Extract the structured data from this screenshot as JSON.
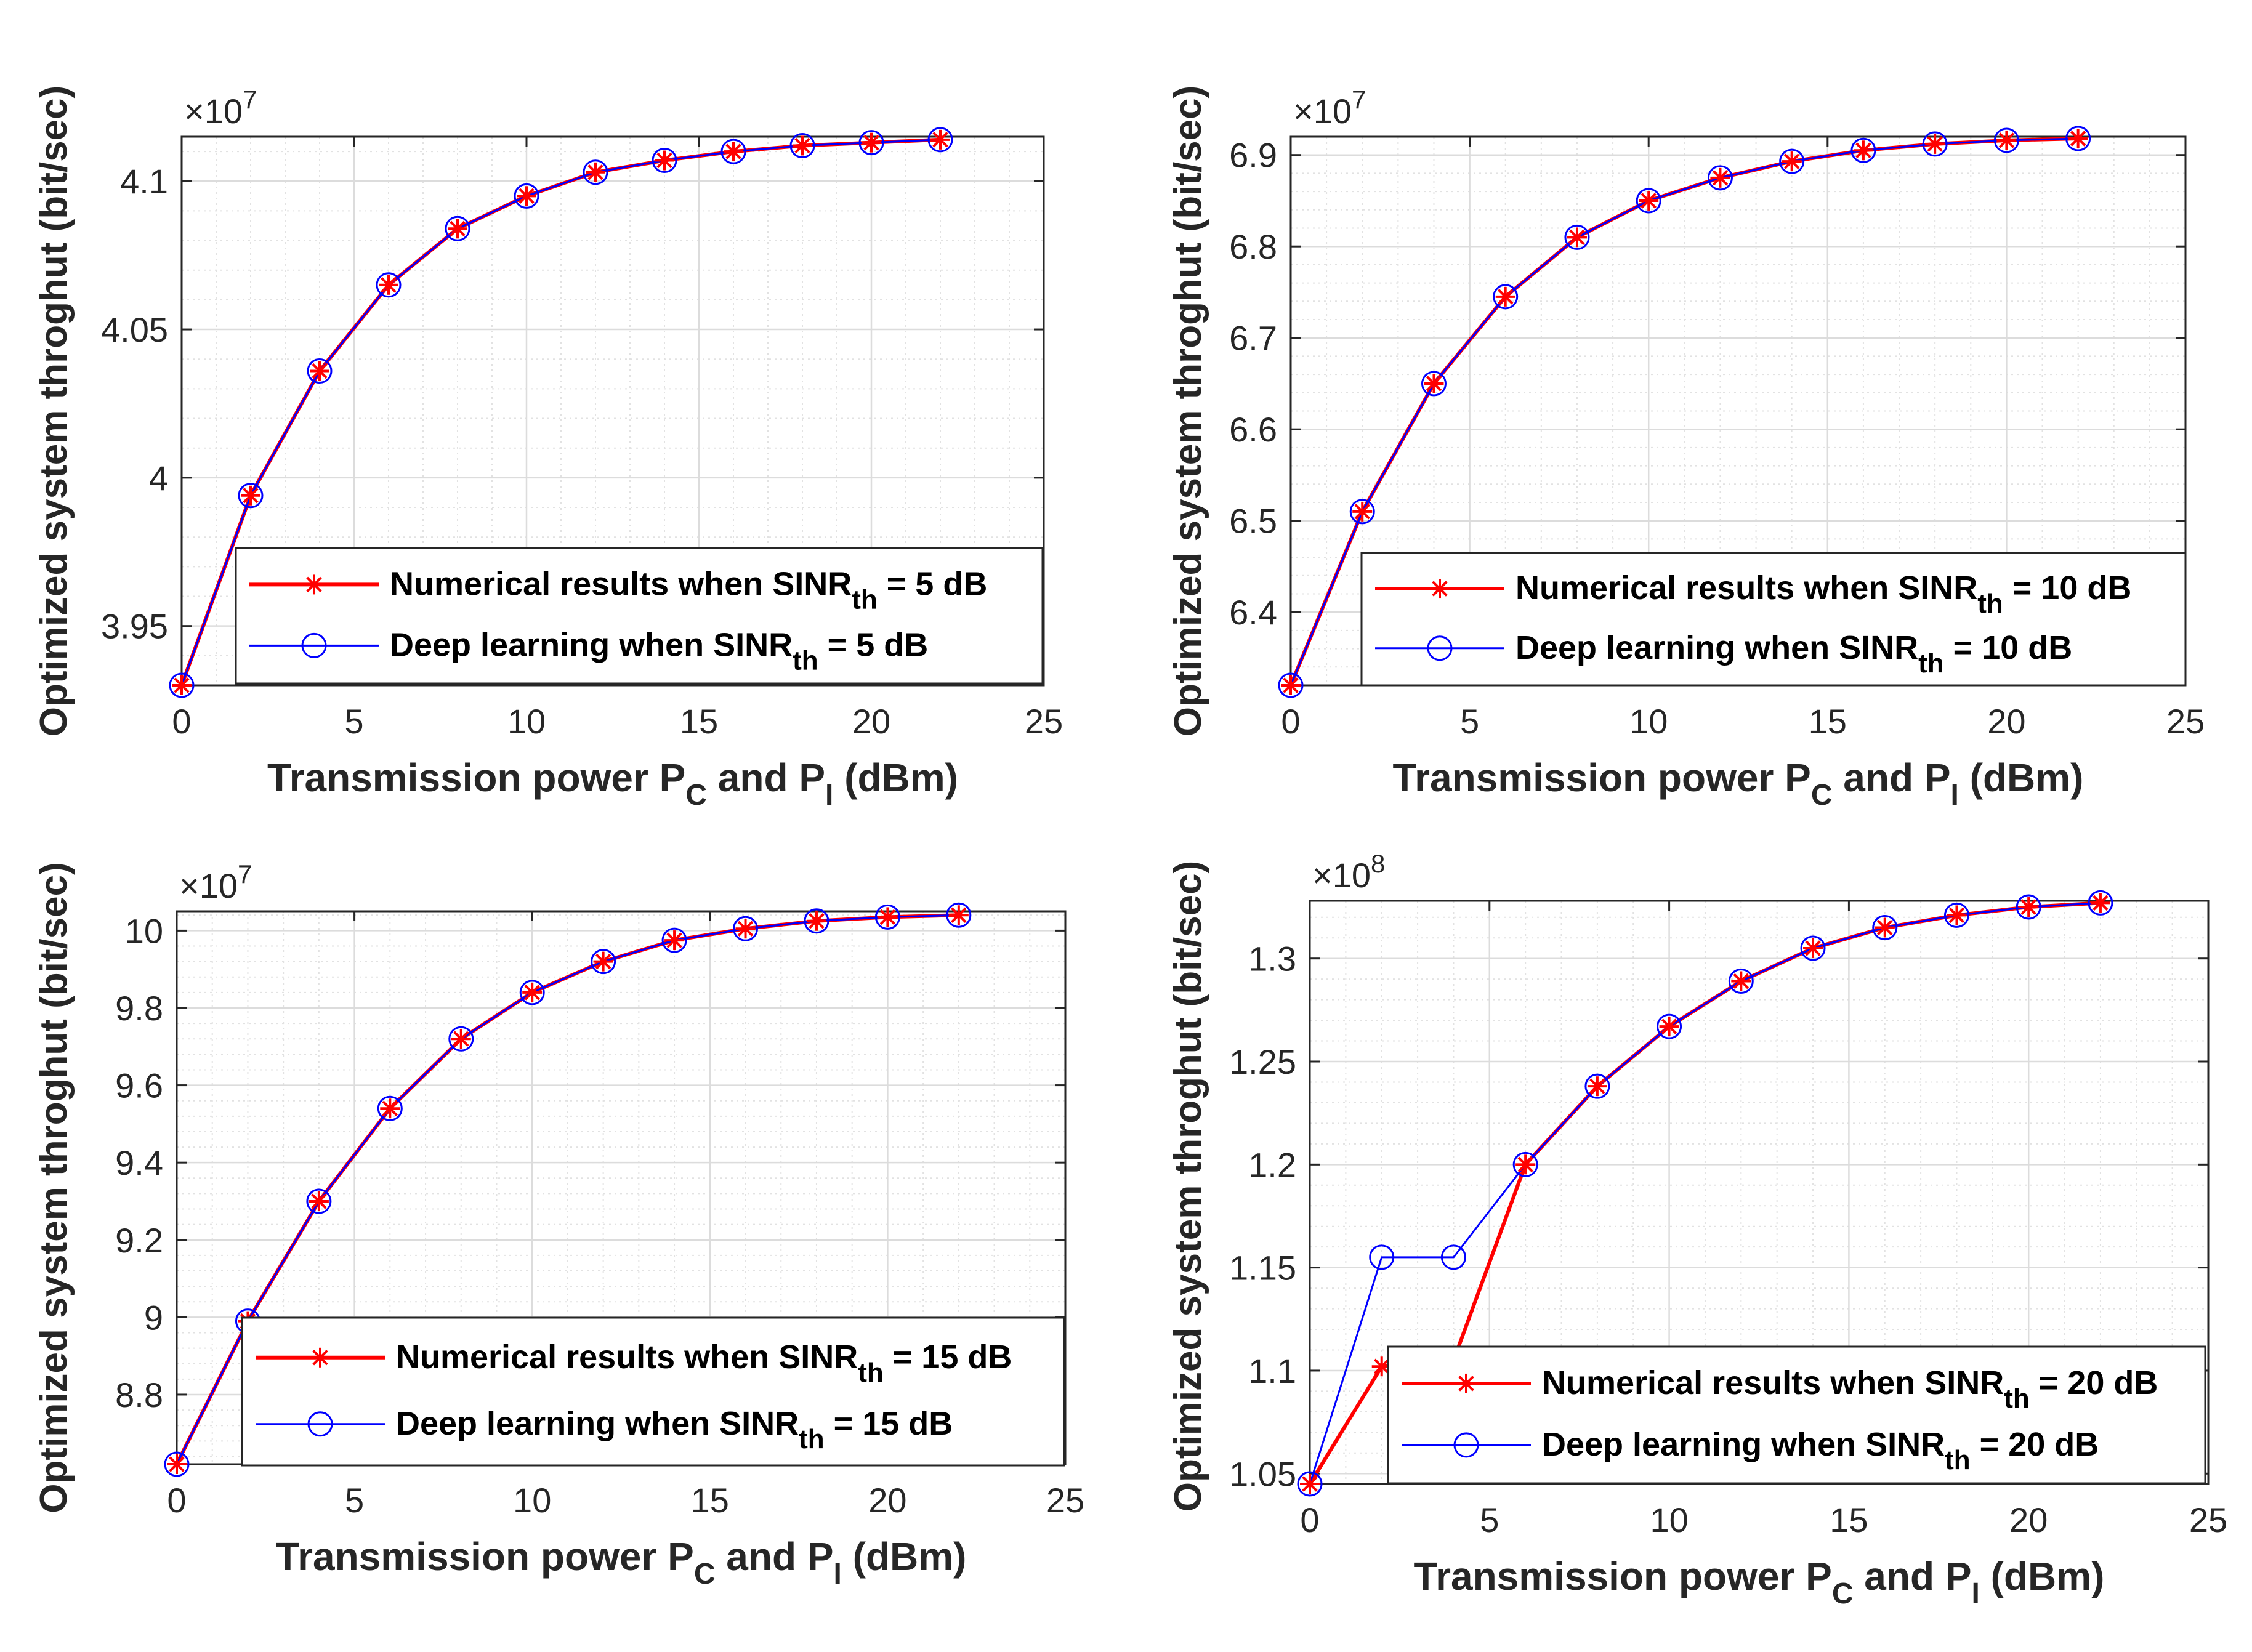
{
  "colors": {
    "numerical": "#ff0000",
    "deep": "#0000ff",
    "axis": "#262626",
    "grid": "#dcdcdc"
  },
  "chart_data": [
    {
      "type": "line",
      "xlabel_main": "Transmission power P",
      "xlabel_sub1": "C",
      "xlabel_mid": " and P",
      "xlabel_sub2": "I",
      "xlabel_end": " (dBm)",
      "ylabel": "Optimized system throghut (bit/sec)",
      "exponent_base": "×10",
      "exponent": "7",
      "xlim": [
        0,
        25
      ],
      "ylim": [
        3.93,
        4.115
      ],
      "xticks": [
        0,
        5,
        10,
        15,
        20,
        25
      ],
      "xtick_labels": [
        "0",
        "5",
        "10",
        "15",
        "20",
        "25"
      ],
      "yticks": [
        3.95,
        4.0,
        4.05,
        4.1
      ],
      "ytick_labels": [
        "3.95",
        "4",
        "4.05",
        "4.1"
      ],
      "x": [
        0,
        2,
        4,
        6,
        8,
        10,
        12,
        14,
        16,
        18,
        20,
        22
      ],
      "series": [
        {
          "name": "Numerical results",
          "values": [
            3.93,
            3.994,
            4.036,
            4.065,
            4.084,
            4.095,
            4.103,
            4.107,
            4.11,
            4.112,
            4.113,
            4.114
          ]
        },
        {
          "name": "Deep learning",
          "values": [
            3.93,
            3.994,
            4.036,
            4.065,
            4.084,
            4.095,
            4.103,
            4.107,
            4.11,
            4.112,
            4.113,
            4.114
          ]
        }
      ],
      "legend": [
        {
          "prefix": "Numerical results when SINR",
          "sub": "th",
          "suffix": " = 5 dB"
        },
        {
          "prefix": "Deep learning when SINR",
          "sub": "th",
          "suffix": " = 5 dB"
        }
      ],
      "legend_position": "bottom-right"
    },
    {
      "type": "line",
      "xlabel_main": "Transmission power P",
      "xlabel_sub1": "C",
      "xlabel_mid": " and P",
      "xlabel_sub2": "I",
      "xlabel_end": " (dBm)",
      "ylabel": "Optimized system throghut (bit/sec)",
      "exponent_base": "×10",
      "exponent": "7",
      "xlim": [
        0,
        25
      ],
      "ylim": [
        6.32,
        6.92
      ],
      "xticks": [
        0,
        5,
        10,
        15,
        20,
        25
      ],
      "xtick_labels": [
        "0",
        "5",
        "10",
        "15",
        "20",
        "25"
      ],
      "yticks": [
        6.4,
        6.5,
        6.6,
        6.7,
        6.8,
        6.9
      ],
      "ytick_labels": [
        "6.4",
        "6.5",
        "6.6",
        "6.7",
        "6.8",
        "6.9"
      ],
      "x": [
        0,
        2,
        4,
        6,
        8,
        10,
        12,
        14,
        16,
        18,
        20,
        22
      ],
      "series": [
        {
          "name": "Numerical results",
          "values": [
            6.32,
            6.51,
            6.65,
            6.745,
            6.81,
            6.85,
            6.875,
            6.893,
            6.905,
            6.912,
            6.916,
            6.918
          ]
        },
        {
          "name": "Deep learning",
          "values": [
            6.32,
            6.51,
            6.65,
            6.745,
            6.81,
            6.85,
            6.875,
            6.893,
            6.905,
            6.912,
            6.916,
            6.918
          ]
        }
      ],
      "legend": [
        {
          "prefix": "Numerical results when SINR",
          "sub": "th",
          "suffix": " = 10 dB"
        },
        {
          "prefix": "Deep learning when SINR",
          "sub": "th",
          "suffix": " = 10 dB"
        }
      ],
      "legend_position": "bottom-right"
    },
    {
      "type": "line",
      "xlabel_main": "Transmission power P",
      "xlabel_sub1": "C",
      "xlabel_mid": " and P",
      "xlabel_sub2": "I",
      "xlabel_end": " (dBm)",
      "ylabel": "Optimized system throghut (bit/sec)",
      "exponent_base": "×10",
      "exponent": "7",
      "xlim": [
        0,
        25
      ],
      "ylim": [
        8.62,
        10.05
      ],
      "xticks": [
        0,
        5,
        10,
        15,
        20,
        25
      ],
      "xtick_labels": [
        "0",
        "5",
        "10",
        "15",
        "20",
        "25"
      ],
      "yticks": [
        8.8,
        9.0,
        9.2,
        9.4,
        9.6,
        9.8,
        10.0
      ],
      "ytick_labels": [
        "8.8",
        "9",
        "9.2",
        "9.4",
        "9.6",
        "9.8",
        "10"
      ],
      "x": [
        0,
        2,
        4,
        6,
        8,
        10,
        12,
        14,
        16,
        18,
        20,
        22
      ],
      "series": [
        {
          "name": "Numerical results",
          "values": [
            8.62,
            8.99,
            9.3,
            9.54,
            9.72,
            9.84,
            9.92,
            9.975,
            10.005,
            10.025,
            10.035,
            10.04
          ]
        },
        {
          "name": "Deep learning",
          "values": [
            8.62,
            8.99,
            9.3,
            9.54,
            9.72,
            9.84,
            9.92,
            9.975,
            10.005,
            10.025,
            10.035,
            10.04
          ]
        }
      ],
      "legend": [
        {
          "prefix": "Numerical results when SINR",
          "sub": "th",
          "suffix": " = 15 dB"
        },
        {
          "prefix": "Deep learning when SINR",
          "sub": "th",
          "suffix": " = 15 dB"
        }
      ],
      "legend_position": "bottom-right"
    },
    {
      "type": "line",
      "xlabel_main": "Transmission power P",
      "xlabel_sub1": "C",
      "xlabel_mid": " and P",
      "xlabel_sub2": "I",
      "xlabel_end": " (dBm)",
      "ylabel": "Optimized system throghut (bit/sec)",
      "exponent_base": "×10",
      "exponent": "8",
      "xlim": [
        0,
        25
      ],
      "ylim": [
        1.045,
        1.328
      ],
      "xticks": [
        0,
        5,
        10,
        15,
        20,
        25
      ],
      "xtick_labels": [
        "0",
        "5",
        "10",
        "15",
        "20",
        "25"
      ],
      "yticks": [
        1.05,
        1.1,
        1.15,
        1.2,
        1.25,
        1.3
      ],
      "ytick_labels": [
        "1.05",
        "1.1",
        "1.15",
        "1.2",
        "1.25",
        "1.3"
      ],
      "x": [
        0,
        2,
        4,
        6,
        8,
        10,
        12,
        14,
        16,
        18,
        20,
        22
      ],
      "series": [
        {
          "name": "Numerical results",
          "values": [
            1.045,
            1.102,
            1.105,
            1.2,
            1.238,
            1.267,
            1.289,
            1.305,
            1.315,
            1.321,
            1.325,
            1.327
          ]
        },
        {
          "name": "Deep learning",
          "values": [
            1.045,
            1.155,
            1.155,
            1.2,
            1.238,
            1.267,
            1.289,
            1.305,
            1.315,
            1.321,
            1.325,
            1.327
          ]
        }
      ],
      "legend": [
        {
          "prefix": "Numerical results when SINR",
          "sub": "th",
          "suffix": " = 20 dB"
        },
        {
          "prefix": "Deep learning when SINR",
          "sub": "th",
          "suffix": " = 20 dB"
        }
      ],
      "legend_position": "bottom-right"
    }
  ]
}
